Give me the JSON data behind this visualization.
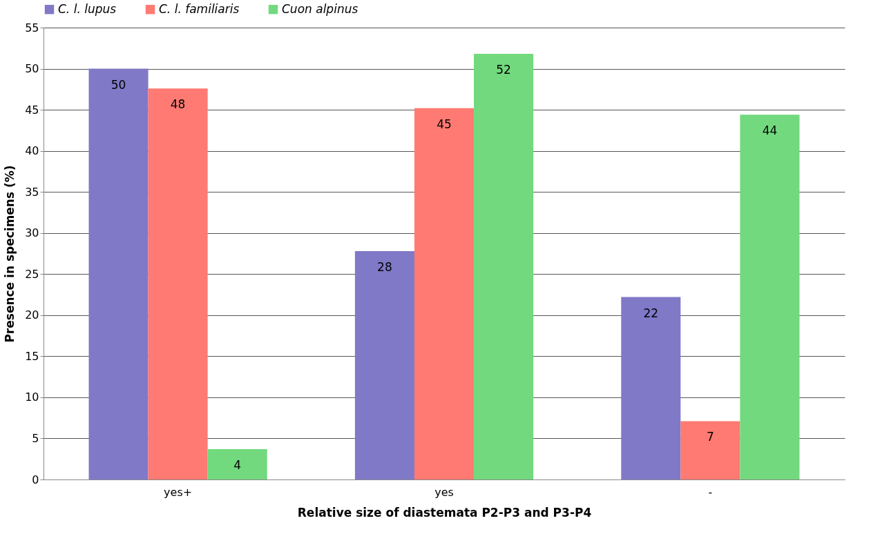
{
  "chart_data": {
    "type": "bar",
    "xlabel": "Relative size of diastemata P2-P3 and P3-P4",
    "ylabel": "Presence in specimens (%)",
    "categories": [
      "yes+",
      "yes",
      "-"
    ],
    "series": [
      {
        "name": "C. l. lupus",
        "color": "#8079c8",
        "values": [
          50.0,
          27.8,
          22.2
        ],
        "value_labels": [
          "50",
          "28",
          "22"
        ]
      },
      {
        "name": "C. l. familiaris",
        "color": "#ff7a72",
        "values": [
          47.6,
          45.2,
          7.1
        ],
        "value_labels": [
          "48",
          "45",
          "7"
        ]
      },
      {
        "name": "Cuon alpinus",
        "color": "#72d97e",
        "values": [
          3.7,
          51.8,
          44.4
        ],
        "value_labels": [
          "4",
          "52",
          "44"
        ]
      }
    ],
    "ylim": [
      0,
      55
    ],
    "yticks": [
      0,
      5,
      10,
      15,
      20,
      25,
      30,
      35,
      40,
      45,
      50,
      55
    ],
    "grid": "y",
    "legend": "top"
  }
}
